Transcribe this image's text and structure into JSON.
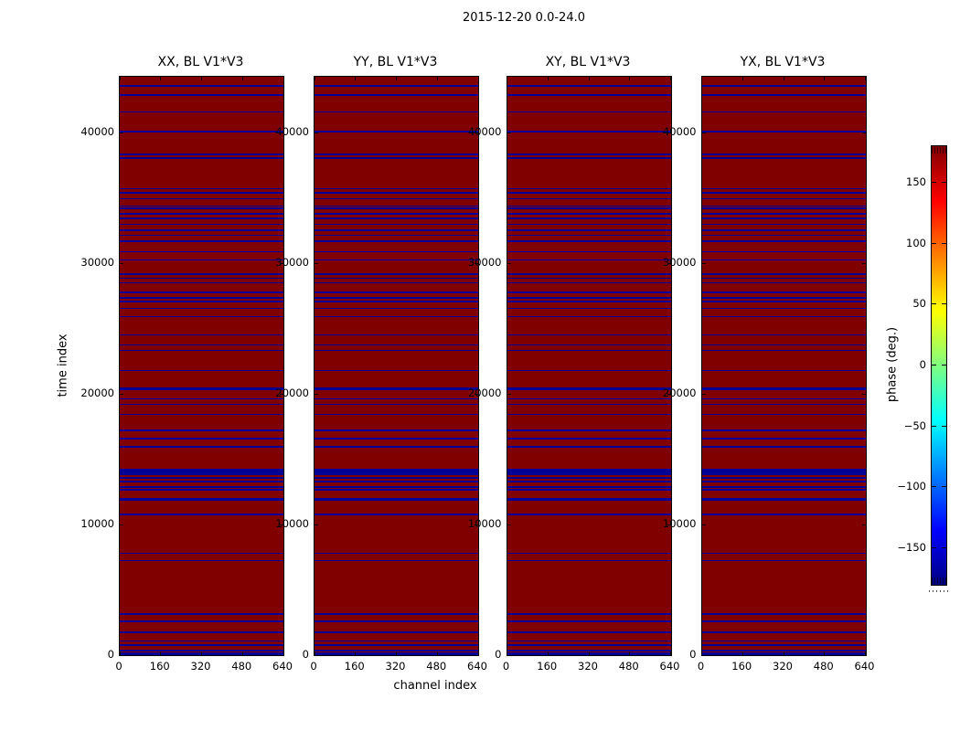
{
  "chart_data": {
    "type": "heatmap",
    "suptitle": "2015-12-20 0.0-24.0",
    "panels": [
      "XX, BL V1*V3",
      "YY, BL V1*V3",
      "XY, BL V1*V3",
      "YX, BL V1*V3"
    ],
    "xlabel": "channel index",
    "ylabel": "time index",
    "x_ticks": [
      0,
      160,
      320,
      480,
      640
    ],
    "y_ticks": [
      0,
      10000,
      20000,
      30000,
      40000
    ],
    "x_range": [
      0,
      640
    ],
    "y_range": [
      0,
      44300
    ],
    "grid": false,
    "background_phase_deg": 180,
    "flagged_phase_deg": -180,
    "colors": {
      "background": "#800000",
      "flag_line": "#000094",
      "frame": "#000000",
      "figure_bg": "#ffffff"
    },
    "flag_rows_note": "pairs of [time_index_center, row_span]; rows of ~-180 deg phase (navy) over +180 deg (dark red) background, identical in all four panels",
    "flag_rows": [
      [
        43600,
        110
      ],
      [
        42900,
        110
      ],
      [
        41600,
        110
      ],
      [
        40100,
        110
      ],
      [
        38350,
        110
      ],
      [
        38080,
        110
      ],
      [
        35720,
        110
      ],
      [
        35400,
        110
      ],
      [
        34950,
        110
      ],
      [
        34400,
        110
      ],
      [
        34220,
        110
      ],
      [
        33800,
        110
      ],
      [
        33440,
        110
      ],
      [
        33000,
        110
      ],
      [
        32550,
        110
      ],
      [
        32150,
        110
      ],
      [
        31700,
        110
      ],
      [
        30900,
        110
      ],
      [
        30280,
        110
      ],
      [
        29200,
        150
      ],
      [
        28880,
        110
      ],
      [
        28530,
        110
      ],
      [
        27800,
        110
      ],
      [
        27370,
        110
      ],
      [
        27090,
        110
      ],
      [
        26550,
        110
      ],
      [
        25920,
        110
      ],
      [
        24520,
        110
      ],
      [
        23750,
        110
      ],
      [
        23350,
        110
      ],
      [
        21810,
        110
      ],
      [
        20410,
        180
      ],
      [
        19620,
        110
      ],
      [
        19200,
        110
      ],
      [
        18450,
        110
      ],
      [
        17210,
        110
      ],
      [
        16580,
        110
      ],
      [
        15970,
        110
      ],
      [
        14050,
        520
      ],
      [
        13590,
        110
      ],
      [
        13310,
        110
      ],
      [
        12890,
        110
      ],
      [
        12650,
        110
      ],
      [
        11910,
        190
      ],
      [
        10790,
        110
      ],
      [
        7800,
        110
      ],
      [
        7240,
        110
      ],
      [
        3130,
        110
      ],
      [
        2570,
        110
      ],
      [
        1730,
        110
      ],
      [
        1070,
        110
      ],
      [
        750,
        110
      ],
      [
        330,
        110
      ],
      [
        90,
        220
      ]
    ],
    "colorbar": {
      "label": "phase (deg.)",
      "ticks": [
        -150,
        -100,
        -50,
        0,
        50,
        100,
        150
      ],
      "range": [
        -180,
        180
      ],
      "colormap": "jet",
      "stops": [
        [
          "#000080",
          0
        ],
        [
          "#0000ff",
          12.5
        ],
        [
          "#00ffff",
          37.5
        ],
        [
          "#ffff00",
          62.5
        ],
        [
          "#ff0000",
          87.5
        ],
        [
          "#800000",
          100
        ]
      ]
    }
  }
}
